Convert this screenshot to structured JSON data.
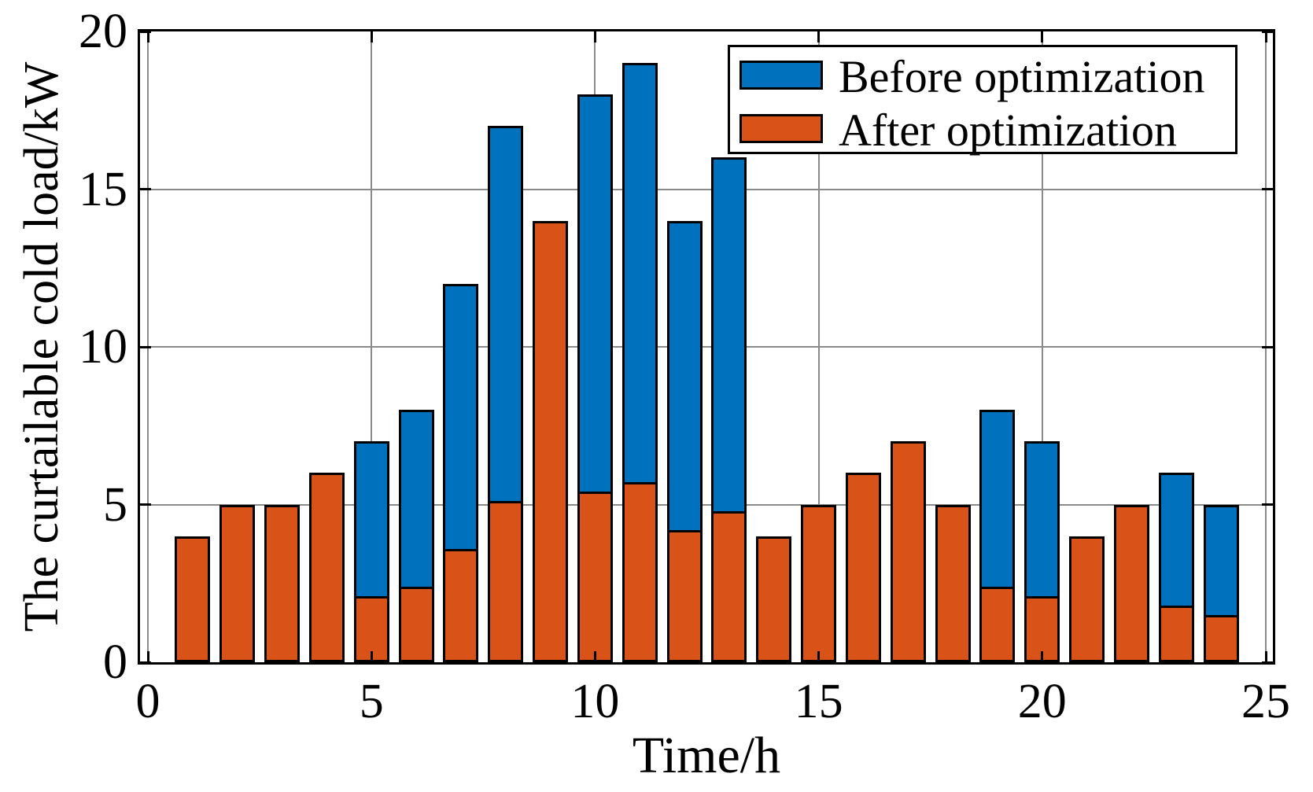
{
  "figure": {
    "title": "",
    "xlabel": "Time/h",
    "ylabel": "The curtailable cold load/kW"
  },
  "legend": {
    "position": "top-right",
    "entries": [
      {
        "label": "Before optimization",
        "color": "#0072BD"
      },
      {
        "label": "After optimization",
        "color": "#D95319"
      }
    ]
  },
  "chart_data": {
    "type": "bar",
    "bar_style": "overlaid (After drawn in front of Before; Before hidden where values are equal)",
    "title": "",
    "xlabel": "Time/h",
    "ylabel": "The curtailable cold load/kW",
    "x": [
      1,
      2,
      3,
      4,
      5,
      6,
      7,
      8,
      9,
      10,
      11,
      12,
      13,
      14,
      15,
      16,
      17,
      18,
      19,
      20,
      21,
      22,
      23,
      24
    ],
    "series": [
      {
        "name": "Before optimization",
        "color": "#0072BD",
        "values": [
          4,
          5,
          5,
          6,
          7,
          8,
          12,
          17,
          14,
          18,
          19,
          14,
          16,
          4,
          5,
          6,
          7,
          5,
          8,
          7,
          4,
          5,
          6,
          5
        ]
      },
      {
        "name": "After optimization",
        "color": "#D95319",
        "values": [
          4,
          5,
          5,
          6,
          2.1,
          2.4,
          3.6,
          5.1,
          14,
          5.4,
          5.7,
          4.2,
          4.8,
          4,
          5,
          6,
          7,
          5,
          2.4,
          2.1,
          4,
          5,
          1.8,
          1.5
        ]
      }
    ],
    "xlim": [
      -0.2,
      25.2
    ],
    "ylim": [
      0,
      20
    ],
    "x_ticks": [
      0,
      5,
      10,
      15,
      20,
      25
    ],
    "y_ticks": [
      0,
      5,
      10,
      15,
      20
    ],
    "grid": true,
    "gridline_color": "#8A8A8A",
    "frame_color": "#000000",
    "background": "#FFFFFF",
    "legend_position": "top-right"
  }
}
